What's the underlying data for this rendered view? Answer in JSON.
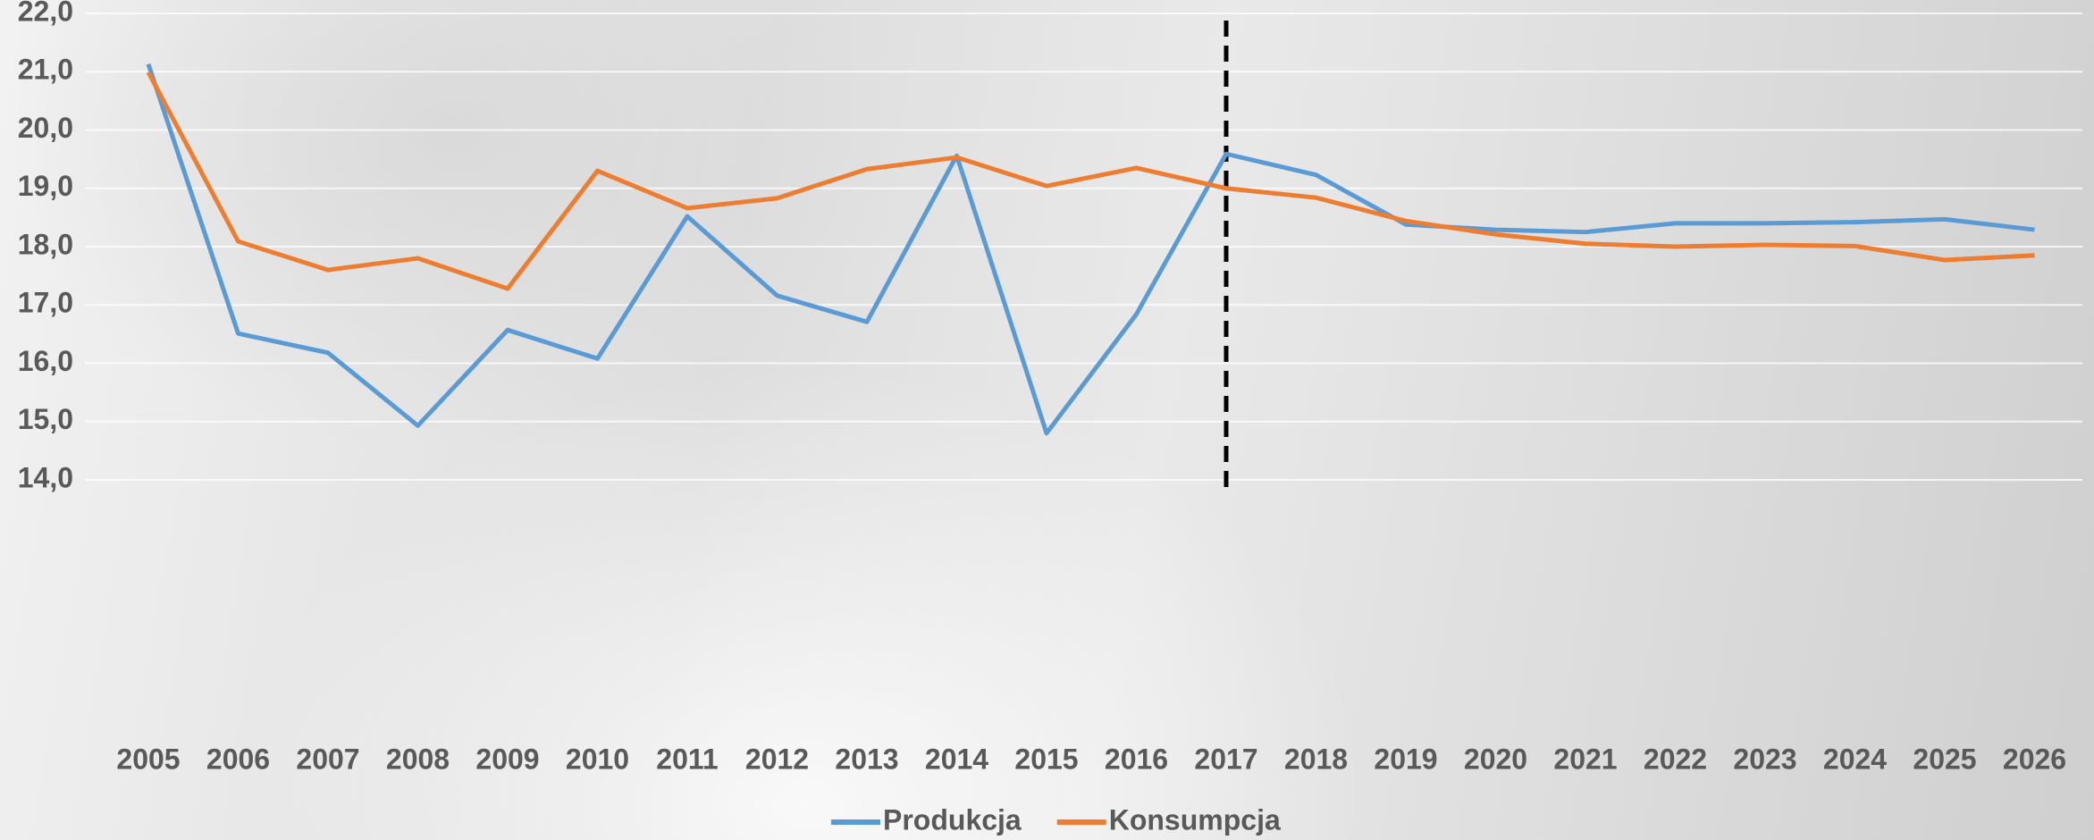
{
  "chart_data": {
    "type": "line",
    "categories": [
      "2005",
      "2006",
      "2007",
      "2008",
      "2009",
      "2010",
      "2011",
      "2012",
      "2013",
      "2014",
      "2015",
      "2016",
      "2017",
      "2018",
      "2019",
      "2020",
      "2021",
      "2022",
      "2023",
      "2024",
      "2025",
      "2026"
    ],
    "series": [
      {
        "name": "Produkcja",
        "color": "#5b9bd5",
        "values": [
          21.13,
          16.51,
          16.18,
          14.93,
          16.57,
          16.08,
          18.52,
          17.16,
          16.71,
          19.56,
          14.8,
          16.84,
          19.59,
          19.23,
          18.38,
          18.29,
          18.25,
          18.4,
          18.4,
          18.42,
          18.47,
          18.29
        ]
      },
      {
        "name": "Konsumpcja",
        "color": "#ed7d31",
        "values": [
          20.99,
          18.09,
          17.6,
          17.8,
          17.28,
          19.3,
          18.66,
          18.83,
          19.33,
          19.53,
          19.04,
          19.35,
          19.0,
          18.84,
          18.44,
          18.21,
          18.05,
          18.0,
          18.03,
          18.01,
          17.77,
          17.85
        ]
      }
    ],
    "ylim": [
      14,
      22
    ],
    "yticks": [
      {
        "value": 14,
        "label": "14,0"
      },
      {
        "value": 15,
        "label": "15,0"
      },
      {
        "value": 16,
        "label": "16,0"
      },
      {
        "value": 17,
        "label": "17,0"
      },
      {
        "value": 18,
        "label": "18,0"
      },
      {
        "value": 19,
        "label": "19,0"
      },
      {
        "value": 20,
        "label": "20,0"
      },
      {
        "value": 21,
        "label": "21,0"
      },
      {
        "value": 22,
        "label": "22,0"
      }
    ],
    "grid": true,
    "legend": "bottom",
    "marker_line": {
      "category": "2017",
      "style": "dashed",
      "color": "#000000"
    }
  }
}
